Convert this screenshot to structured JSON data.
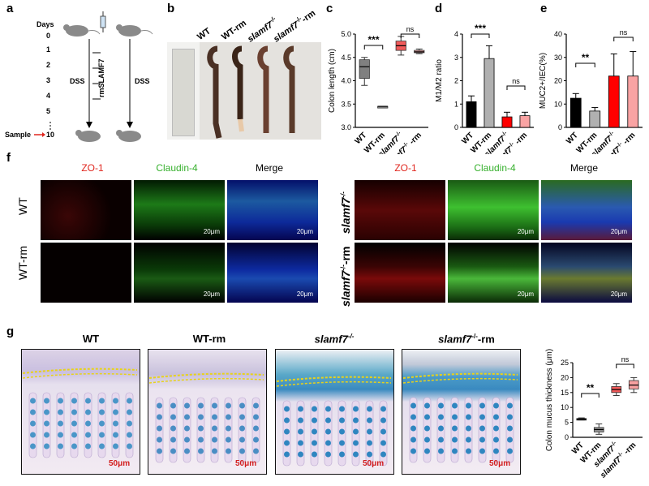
{
  "panel_letters": [
    "a",
    "b",
    "c",
    "d",
    "e",
    "f",
    "g"
  ],
  "panel_a": {
    "days_label": "Days",
    "days": [
      "0",
      "1",
      "2",
      "3",
      "4",
      "5"
    ],
    "treatment": "rmSLAMF7",
    "dss": "DSS",
    "sample": "Sample",
    "sample_day": "10"
  },
  "panel_b": {
    "labels": [
      "WT",
      "WT-rm",
      "slamf7",
      "slamf7",
      "-rm"
    ],
    "sup": "-/-"
  },
  "panel_f": {
    "headers": [
      "ZO-1",
      "Claudin-4",
      "Merge",
      "ZO-1",
      "Claudin-4",
      "Merge"
    ],
    "rows_left": [
      "WT",
      "WT-rm"
    ],
    "rows_right_base": "slamf7",
    "rows_right_suffix": "-rm",
    "sup": "-/-",
    "scale": "20μm",
    "colors": {
      "zo1": "#e0261e",
      "claudin": "#37b02e"
    }
  },
  "panel_g": {
    "titles": [
      "WT",
      "WT-rm",
      "slamf7",
      "slamf7",
      "-rm"
    ],
    "sup": "-/-",
    "scale": "50μm"
  },
  "chart_data": [
    {
      "id": "c",
      "type": "box",
      "ylabel": "Colon length (cm)",
      "ylim": [
        3.0,
        5.0
      ],
      "yticks": [
        "3.0",
        "3.5",
        "4.0",
        "4.5",
        "5.0"
      ],
      "categories": [
        "WT",
        "WT-rm",
        "slamf7-/-",
        "slamf7-/- -rm"
      ],
      "series": [
        {
          "min": 3.9,
          "q1": 4.05,
          "median": 4.3,
          "q3": 4.45,
          "max": 4.5,
          "color": "#808080"
        },
        {
          "min": 3.45,
          "q1": 3.45,
          "median": 3.45,
          "q3": 3.45,
          "max": 3.45,
          "color": "#909090"
        },
        {
          "min": 4.55,
          "q1": 4.65,
          "median": 4.75,
          "q3": 4.85,
          "max": 4.95,
          "color": "#f15a5a"
        },
        {
          "min": 4.58,
          "q1": 4.6,
          "median": 4.62,
          "q3": 4.65,
          "max": 4.68,
          "color": "#f7a0a0"
        }
      ],
      "significance": [
        {
          "pair": [
            0,
            1
          ],
          "label": "***"
        },
        {
          "pair": [
            2,
            3
          ],
          "label": "ns"
        }
      ]
    },
    {
      "id": "d",
      "type": "bar",
      "ylabel": "M1/M2 ratio",
      "ylim": [
        0,
        4
      ],
      "yticks": [
        "0",
        "1",
        "2",
        "3",
        "4"
      ],
      "categories": [
        "WT",
        "WT-rm",
        "slamf7-/-",
        "slamf7-/- -rm"
      ],
      "values": [
        1.1,
        2.95,
        0.45,
        0.5
      ],
      "errors": [
        0.25,
        0.55,
        0.2,
        0.15
      ],
      "colors": [
        "#000000",
        "#b0b0b0",
        "#ff0000",
        "#f9a3a3"
      ],
      "significance": [
        {
          "pair": [
            0,
            1
          ],
          "label": "***"
        },
        {
          "pair": [
            2,
            3
          ],
          "label": "ns"
        }
      ]
    },
    {
      "id": "e",
      "type": "bar",
      "ylabel": "MUC2+/IEC(%)",
      "ylim": [
        0,
        40
      ],
      "yticks": [
        "0",
        "10",
        "20",
        "30",
        "40"
      ],
      "categories": [
        "WT",
        "WT-rm",
        "slamf7-/-",
        "slamf7-/- -rm"
      ],
      "values": [
        12.5,
        7.0,
        22.0,
        22.0
      ],
      "errors": [
        2.0,
        1.5,
        9.5,
        10.5
      ],
      "colors": [
        "#000000",
        "#b0b0b0",
        "#ff0000",
        "#f9a3a3"
      ],
      "significance": [
        {
          "pair": [
            0,
            1
          ],
          "label": "**"
        },
        {
          "pair": [
            2,
            3
          ],
          "label": "ns"
        }
      ]
    },
    {
      "id": "g",
      "type": "box",
      "ylabel": "Colon mucus thickness (μm)",
      "ylim": [
        0,
        25
      ],
      "yticks": [
        "0",
        "5",
        "10",
        "15",
        "20",
        "25"
      ],
      "categories": [
        "WT",
        "WT-rm",
        "slamf7-/-",
        "slamf7-/- -rm"
      ],
      "series": [
        {
          "min": 5.8,
          "q1": 5.9,
          "median": 6.1,
          "q3": 6.3,
          "max": 6.5,
          "color": "#222222"
        },
        {
          "min": 1.0,
          "q1": 1.8,
          "median": 2.6,
          "q3": 3.3,
          "max": 4.5,
          "color": "#909090"
        },
        {
          "min": 14.0,
          "q1": 15.0,
          "median": 16.0,
          "q3": 17.0,
          "max": 18.0,
          "color": "#f15a5a"
        },
        {
          "min": 15.0,
          "q1": 16.2,
          "median": 17.5,
          "q3": 19.0,
          "max": 20.0,
          "color": "#f7a0a0"
        }
      ],
      "significance": [
        {
          "pair": [
            0,
            1
          ],
          "label": "**"
        },
        {
          "pair": [
            2,
            3
          ],
          "label": "ns"
        }
      ]
    }
  ]
}
